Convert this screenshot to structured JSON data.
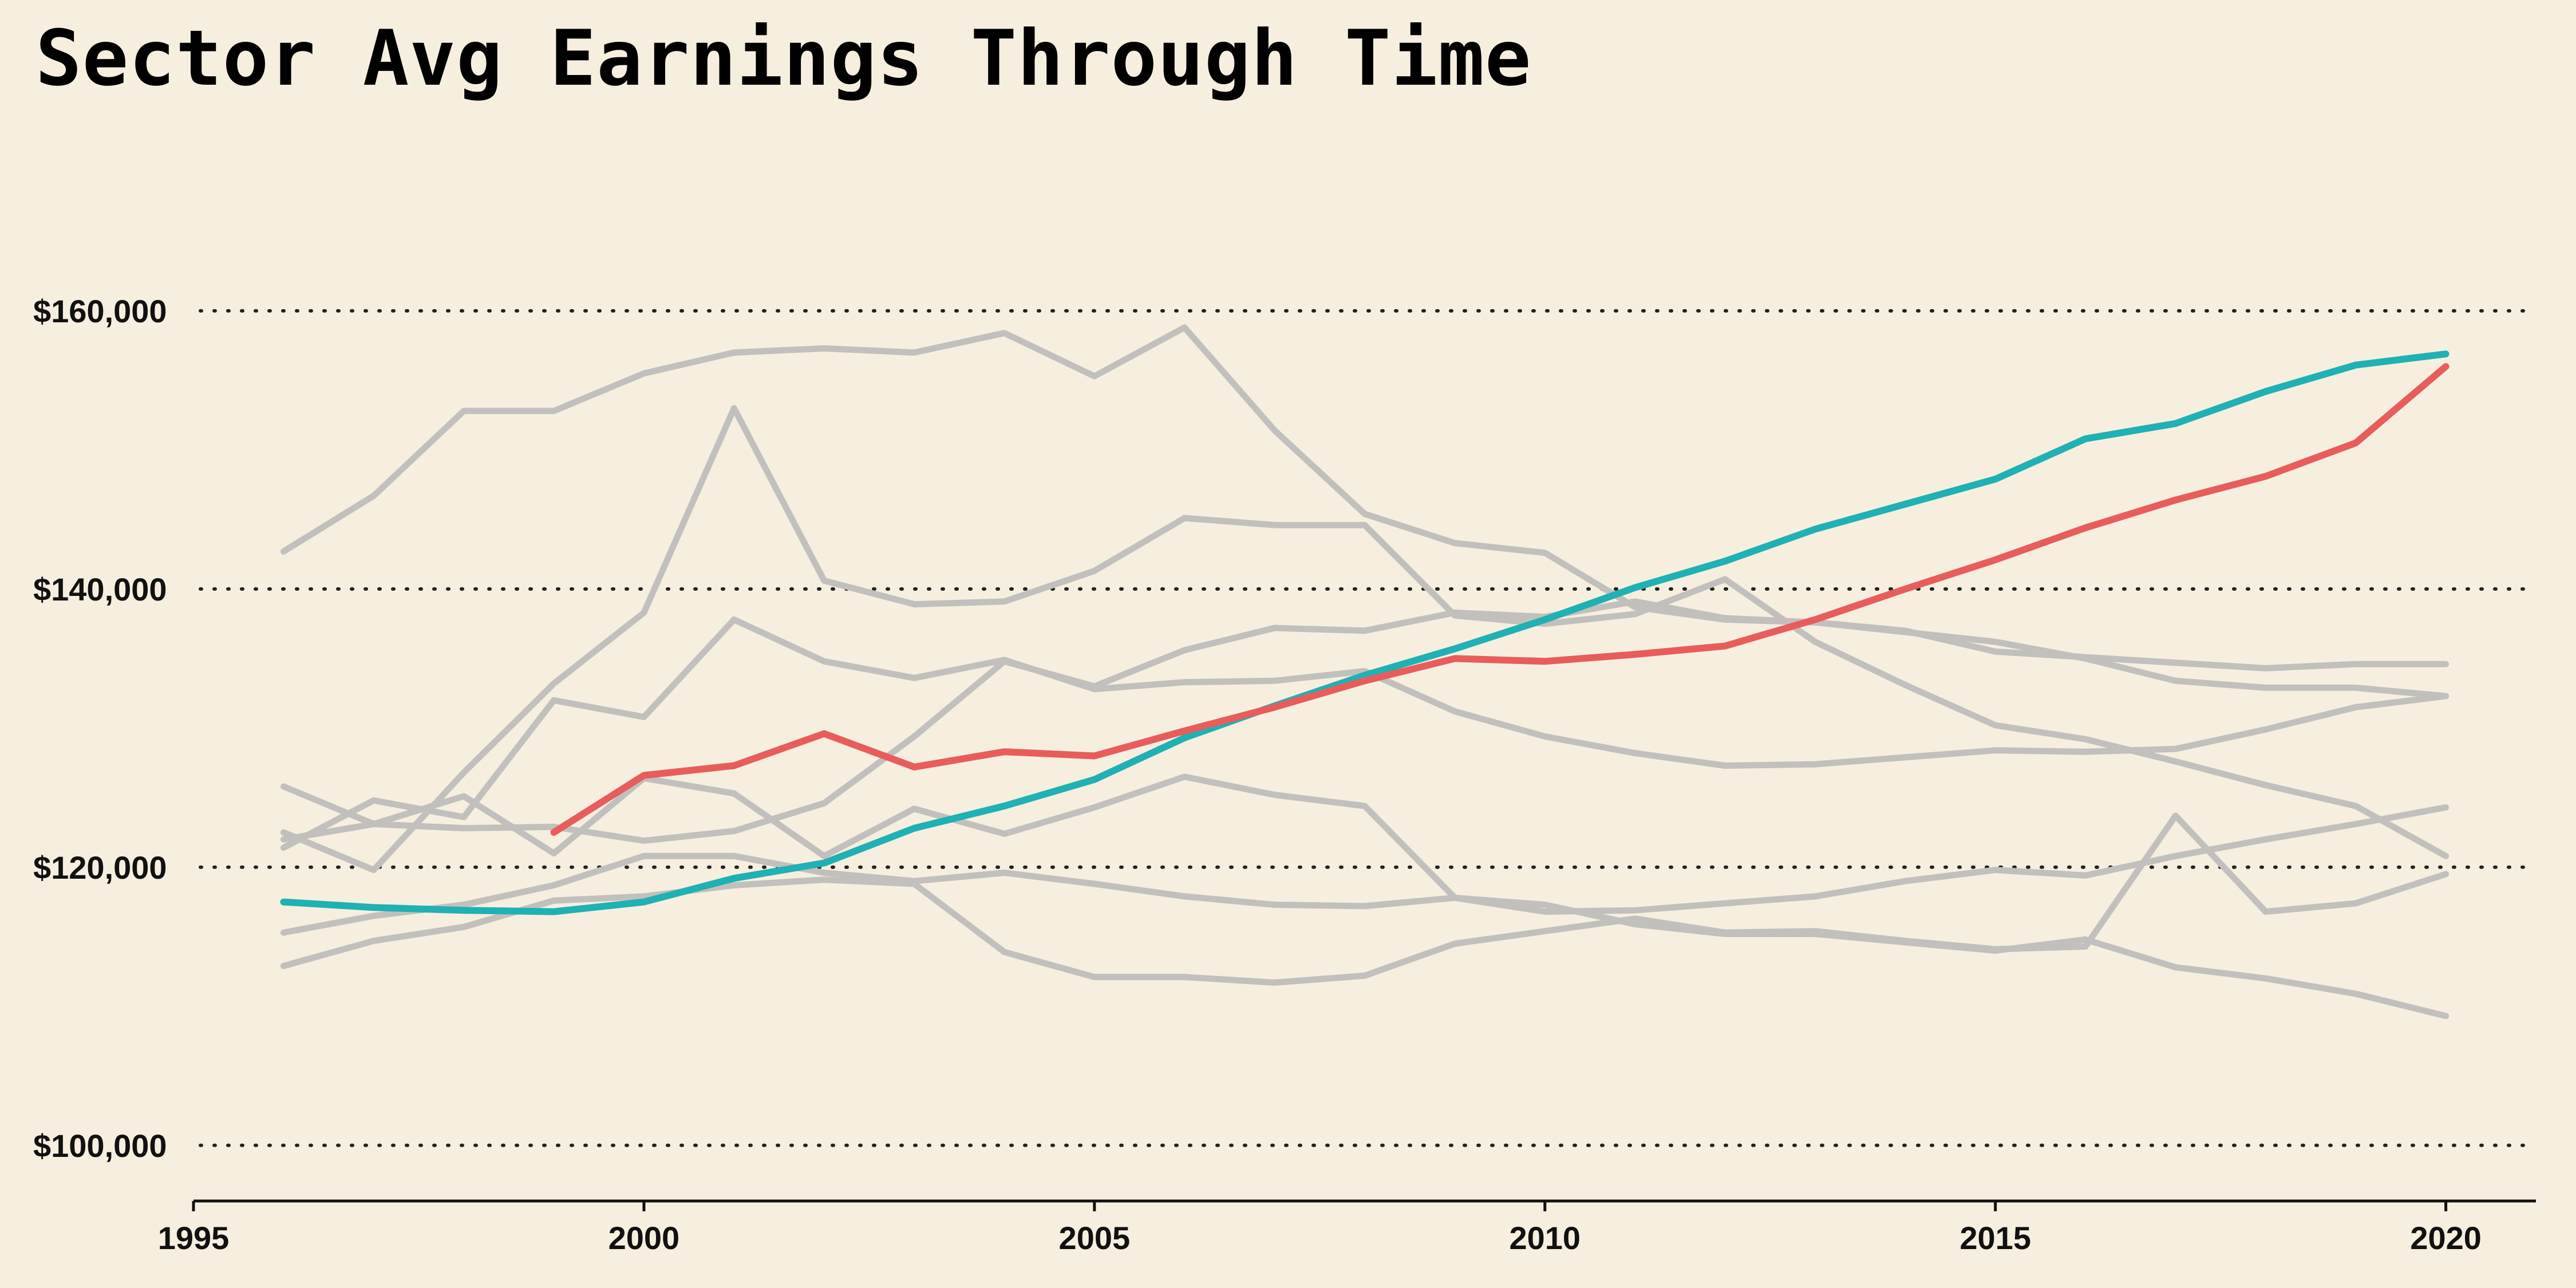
{
  "chart_data": {
    "type": "line",
    "title": "Sector Avg Earnings Through Time",
    "xlabel": "",
    "ylabel": "",
    "xlim": [
      1995,
      2021
    ],
    "ylim": [
      96000,
      170000
    ],
    "xticks": [
      1995,
      2000,
      2005,
      2010,
      2015,
      2020
    ],
    "xtick_labels": [
      "1995",
      "2000",
      "2005",
      "2010",
      "2015",
      "2020"
    ],
    "yticks": [
      100000,
      120000,
      140000,
      160000
    ],
    "ytick_labels": [
      "$100,000",
      "$120,000",
      "$140,000",
      "$160,000"
    ],
    "grid": "horizontal dotted",
    "legend": "none",
    "colors": {
      "background": "#f6efe0",
      "context": "#c2c0bd",
      "highlight_teal": "#1fb1b3",
      "highlight_red": "#e85d5c",
      "grid": "#222222"
    },
    "series": [
      {
        "color": "#c2c0bd",
        "x": [
          1996,
          1997,
          1998,
          1999,
          2000,
          2001,
          2002,
          2003,
          2004,
          2005,
          2006,
          2007,
          2008,
          2009,
          2010,
          2011,
          2012,
          2013,
          2014,
          2015,
          2016,
          2017,
          2018,
          2019,
          2020
        ],
        "values": [
          142700,
          146700,
          152800,
          152800,
          155500,
          157000,
          157300,
          157000,
          158400,
          155300,
          158800,
          151400,
          145400,
          143300,
          142600,
          138700,
          137800,
          137600,
          136900,
          136200,
          135000,
          133400,
          132900,
          132900,
          132300
        ]
      },
      {
        "color": "#c2c0bd",
        "x": [
          1996,
          1997,
          1998,
          1999,
          2000,
          2001,
          2002,
          2003,
          2004,
          2005,
          2006,
          2007,
          2008,
          2009,
          2010,
          2011,
          2012,
          2013,
          2014,
          2015,
          2016,
          2017,
          2018,
          2019,
          2020
        ],
        "values": [
          121400,
          124800,
          123600,
          132000,
          130800,
          137800,
          134800,
          133600,
          134900,
          132800,
          133300,
          133400,
          134100,
          131200,
          129400,
          128200,
          127300,
          127400,
          127900,
          128400,
          128300,
          128500,
          129900,
          131500,
          132300
        ]
      },
      {
        "color": "#c2c0bd",
        "x": [
          1996,
          1997,
          1998,
          1999,
          2000,
          2001,
          2002,
          2003,
          2004,
          2005,
          2006,
          2007,
          2008,
          2009,
          2010,
          2011,
          2012,
          2013,
          2014,
          2015,
          2016,
          2017,
          2018,
          2019,
          2020
        ],
        "values": [
          125800,
          123100,
          125100,
          121000,
          126400,
          125300,
          120800,
          124200,
          122400,
          124300,
          126500,
          125200,
          124400,
          117800,
          116800,
          116900,
          117400,
          117900,
          119000,
          119800,
          119400,
          120800,
          122000,
          123100,
          124300
        ]
      },
      {
        "color": "#c2c0bd",
        "x": [
          1996,
          1997,
          1998,
          1999,
          2000,
          2001,
          2002,
          2003,
          2004,
          2005,
          2006,
          2007,
          2008,
          2009,
          2010,
          2011,
          2012,
          2013,
          2014,
          2015,
          2016,
          2017,
          2018,
          2019,
          2020
        ],
        "values": [
          122500,
          119800,
          126800,
          133200,
          138300,
          153000,
          140600,
          138900,
          139100,
          141300,
          145100,
          144600,
          144600,
          138100,
          137500,
          138200,
          140700,
          136200,
          133100,
          130200,
          129200,
          127600,
          125900,
          124400,
          120800
        ]
      },
      {
        "color": "#c2c0bd",
        "x": [
          1996,
          1997,
          1998,
          1999,
          2000,
          2001,
          2002,
          2003,
          2004,
          2005,
          2006,
          2007,
          2008,
          2009,
          2010,
          2011,
          2012,
          2013,
          2014,
          2015,
          2016,
          2017,
          2018,
          2019,
          2020
        ],
        "values": [
          115300,
          116500,
          117300,
          118700,
          120800,
          120800,
          119600,
          119000,
          119600,
          118800,
          117900,
          117300,
          117200,
          117800,
          117300,
          115900,
          115200,
          115200,
          114600,
          114000,
          114800,
          112800,
          112000,
          110900,
          109300
        ]
      },
      {
        "color": "#c2c0bd",
        "x": [
          1996,
          1997,
          1998,
          1999,
          2000,
          2001,
          2002,
          2003,
          2004,
          2005,
          2006,
          2007,
          2008,
          2009,
          2010,
          2011,
          2012,
          2013,
          2014,
          2015,
          2016,
          2017,
          2018,
          2019,
          2020
        ],
        "values": [
          112900,
          114700,
          115700,
          117600,
          117900,
          118700,
          119100,
          118800,
          113900,
          112100,
          112100,
          111700,
          112200,
          114500,
          115400,
          116300,
          115300,
          115400,
          114700,
          114100,
          114300,
          123700,
          116800,
          117400,
          119500
        ]
      },
      {
        "color": "#c2c0bd",
        "x": [
          1996,
          1997,
          1998,
          1999,
          2000,
          2001,
          2002,
          2003,
          2004,
          2005,
          2006,
          2007,
          2008,
          2009,
          2010,
          2011,
          2012,
          2013,
          2014,
          2015,
          2016,
          2017,
          2018,
          2019,
          2020
        ],
        "values": [
          122000,
          123100,
          122800,
          122900,
          121900,
          122600,
          124600,
          129400,
          134800,
          133000,
          135600,
          137200,
          137000,
          138300,
          138000,
          139100,
          137900,
          137600,
          137000,
          135500,
          135100,
          134700,
          134300,
          134600,
          134600
        ]
      },
      {
        "color": "#1fb1b3",
        "x": [
          1996,
          1997,
          1998,
          1999,
          2000,
          2001,
          2002,
          2003,
          2004,
          2005,
          2006,
          2007,
          2008,
          2009,
          2010,
          2011,
          2012,
          2013,
          2014,
          2015,
          2016,
          2017,
          2018,
          2019,
          2020
        ],
        "values": [
          117500,
          117100,
          116900,
          116800,
          117500,
          119200,
          120300,
          122800,
          124400,
          126300,
          129300,
          131600,
          133800,
          135700,
          137800,
          140100,
          142000,
          144300,
          146100,
          147900,
          150800,
          151900,
          154200,
          156100,
          156900
        ]
      },
      {
        "color": "#e85d5c",
        "x": [
          1999,
          2000,
          2001,
          2002,
          2003,
          2004,
          2005,
          2006,
          2007,
          2008,
          2009,
          2010,
          2011,
          2012,
          2013,
          2014,
          2015,
          2016,
          2017,
          2018,
          2019,
          2020
        ],
        "values": [
          122500,
          126600,
          127300,
          129600,
          127200,
          128300,
          128000,
          129800,
          131500,
          133400,
          135000,
          134800,
          135300,
          135900,
          137800,
          140000,
          142100,
          144400,
          146400,
          148100,
          150500,
          156000
        ]
      }
    ]
  }
}
